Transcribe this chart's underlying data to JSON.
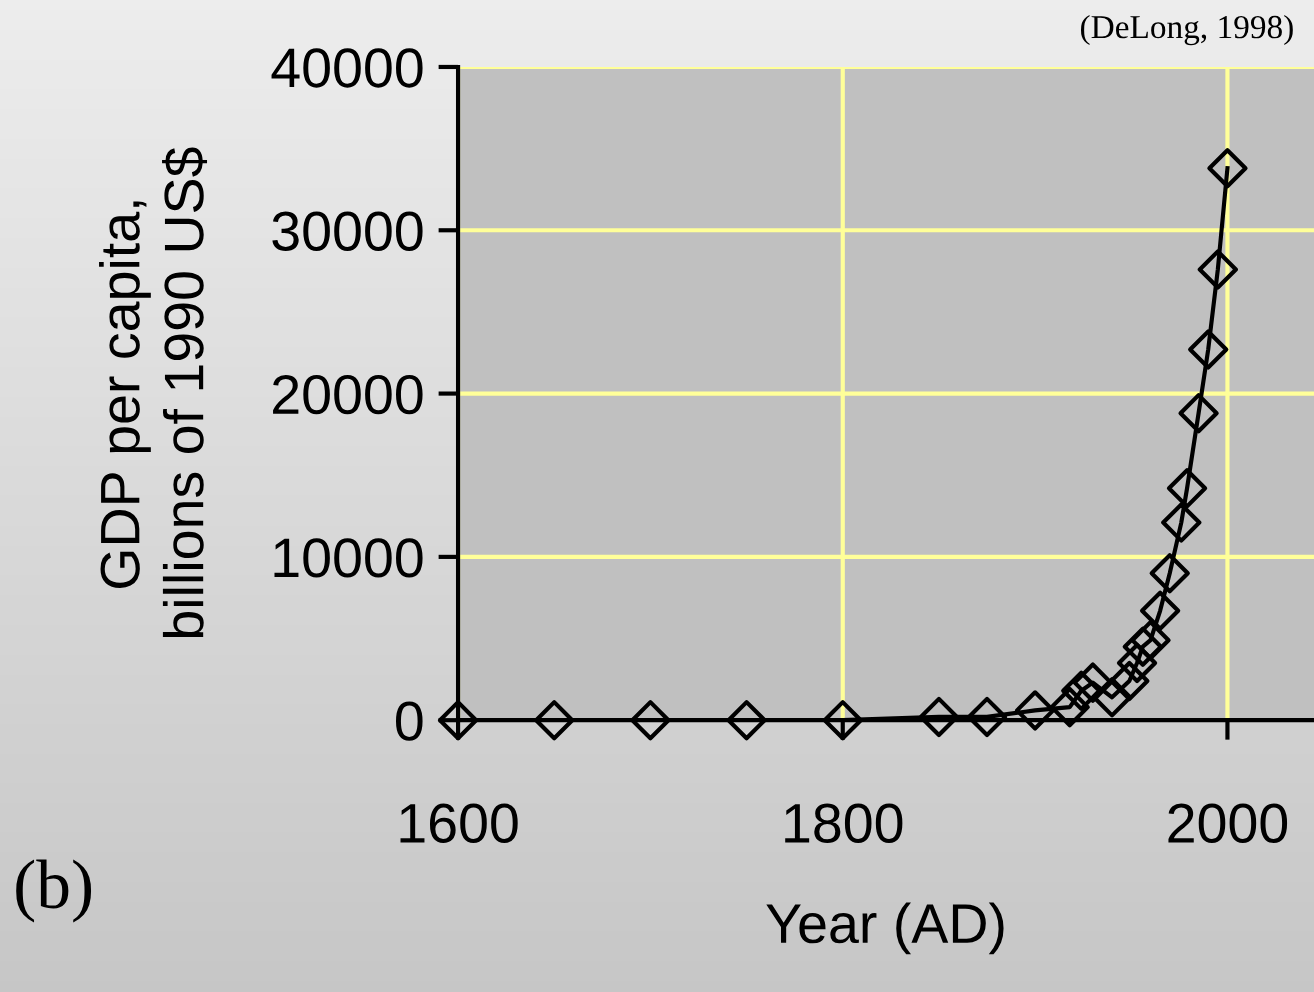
{
  "chart_data": {
    "type": "line",
    "xlabel": "Year (AD)",
    "ylabel": "GDP per capita,\nbillions of 1990 US$",
    "x": [
      1600,
      1650,
      1700,
      1750,
      1800,
      1850,
      1875,
      1900,
      1918,
      1924,
      1930,
      1940,
      1949,
      1953,
      1956,
      1960,
      1965,
      1970,
      1976,
      1979,
      1985,
      1990,
      1995,
      2000
    ],
    "series": [
      {
        "color": "#000000",
        "values": [
          0,
          0,
          0,
          0,
          0,
          200,
          200,
          600,
          800,
          1800,
          2300,
          1400,
          2400,
          3500,
          4500,
          4900,
          6700,
          9000,
          12100,
          14200,
          18800,
          22700,
          27600,
          33800
        ]
      }
    ],
    "xlim": [
      1600,
      2045
    ],
    "xticks": [
      1600,
      1800,
      2000
    ],
    "ylim": [
      0,
      40000
    ],
    "yticks": [
      0,
      10000,
      20000,
      30000,
      40000
    ],
    "grid": true,
    "marker": "diamond",
    "line_style": "solid",
    "annotations": [
      "(DeLong, 1998)",
      "(b)"
    ]
  }
}
